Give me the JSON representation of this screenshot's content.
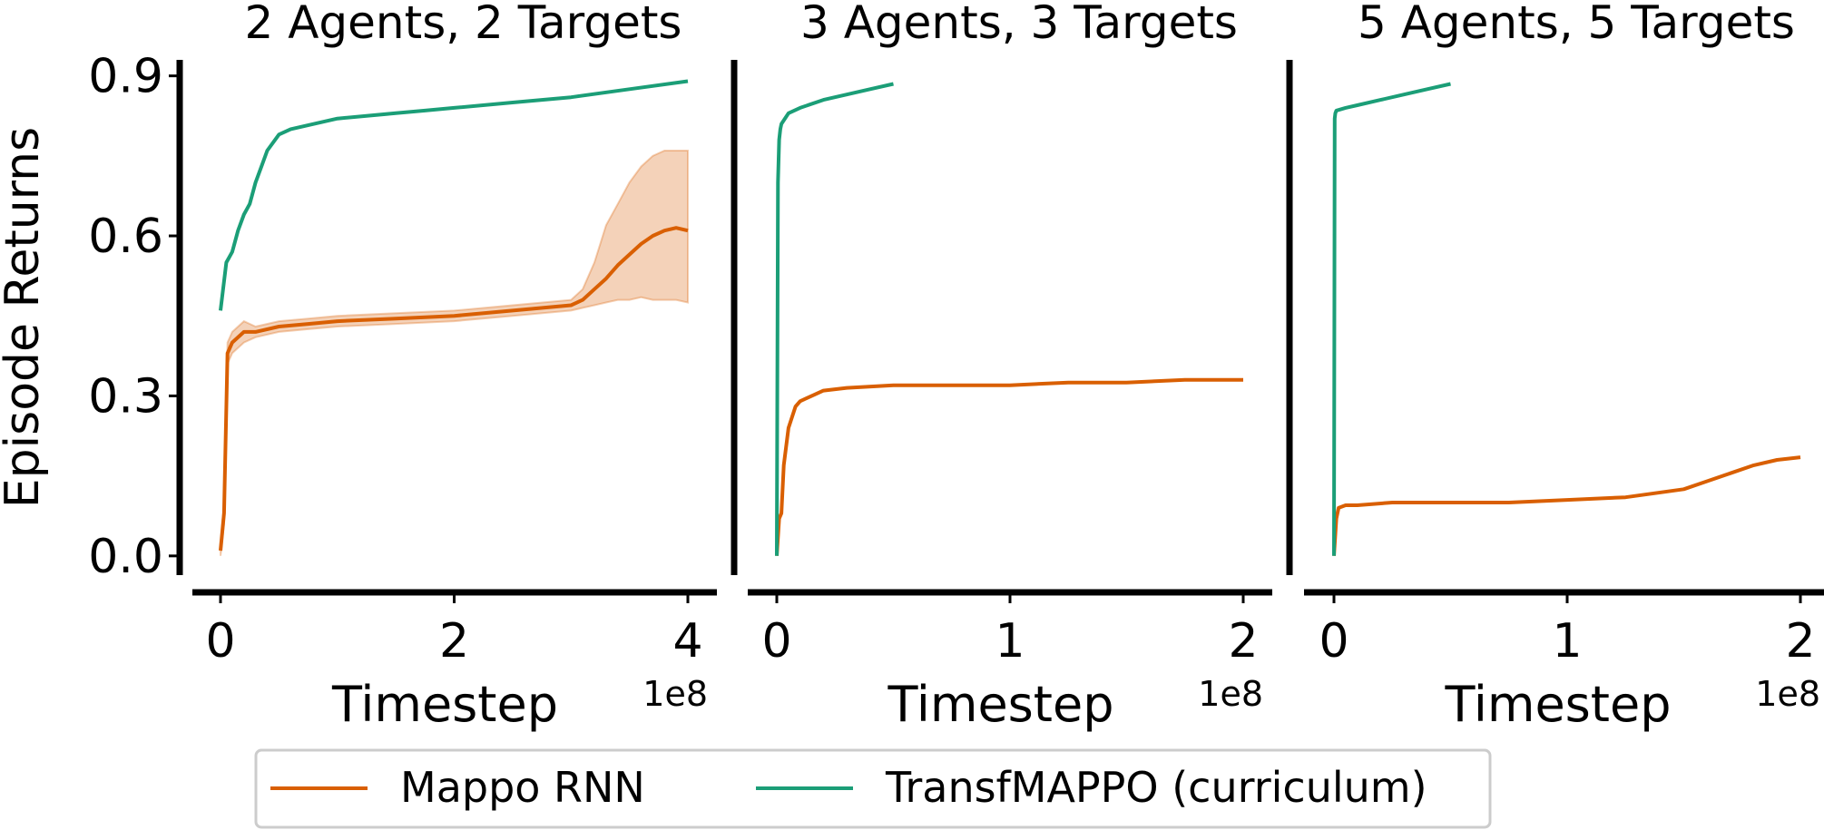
{
  "figure": {
    "ylabel": "Episode Returns",
    "legend": {
      "placement": "bottom-center",
      "entries": [
        {
          "label": "Mappo RNN",
          "color": "#d95f02"
        },
        {
          "label": "TransfMAPPO (curriculum)",
          "color": "#1b9e77"
        }
      ]
    }
  },
  "chart_data": [
    {
      "type": "line",
      "title": "2 Agents, 2 Targets",
      "xlabel": "Timestep",
      "x_offset_label": "1e8",
      "ylabel": "Episode Returns",
      "xlim": [
        0,
        4
      ],
      "ylim": [
        -0.07,
        0.93
      ],
      "xticks": [
        0,
        2,
        4
      ],
      "xtick_labels": [
        "0",
        "2",
        "4"
      ],
      "yticks": [
        0.0,
        0.3,
        0.6,
        0.9
      ],
      "ytick_labels": [
        "0.0",
        "0.3",
        "0.6",
        "0.9"
      ],
      "grid": false,
      "series": [
        {
          "name": "Mappo RNN",
          "color": "#d95f02",
          "x": [
            0,
            0.03,
            0.06,
            0.1,
            0.2,
            0.3,
            0.5,
            0.75,
            1.0,
            1.5,
            2.0,
            2.5,
            3.0,
            3.1,
            3.2,
            3.3,
            3.4,
            3.5,
            3.6,
            3.7,
            3.8,
            3.9,
            4.0
          ],
          "y": [
            0.01,
            0.08,
            0.38,
            0.4,
            0.42,
            0.42,
            0.43,
            0.435,
            0.44,
            0.445,
            0.45,
            0.46,
            0.47,
            0.48,
            0.5,
            0.52,
            0.545,
            0.565,
            0.585,
            0.6,
            0.61,
            0.615,
            0.61
          ],
          "band_low": [
            0.0,
            0.06,
            0.36,
            0.38,
            0.4,
            0.41,
            0.42,
            0.425,
            0.43,
            0.435,
            0.44,
            0.45,
            0.46,
            0.465,
            0.47,
            0.475,
            0.48,
            0.48,
            0.485,
            0.48,
            0.48,
            0.48,
            0.475
          ],
          "band_high": [
            0.02,
            0.1,
            0.4,
            0.42,
            0.44,
            0.43,
            0.44,
            0.445,
            0.45,
            0.455,
            0.46,
            0.47,
            0.48,
            0.5,
            0.55,
            0.62,
            0.66,
            0.7,
            0.73,
            0.75,
            0.76,
            0.76,
            0.76
          ]
        },
        {
          "name": "TransfMAPPO (curriculum)",
          "color": "#1b9e77",
          "x": [
            0,
            0.05,
            0.1,
            0.15,
            0.2,
            0.25,
            0.3,
            0.35,
            0.4,
            0.5,
            0.6,
            0.8,
            1.0,
            1.25,
            1.5,
            1.75,
            2.0,
            2.5,
            3.0,
            3.5,
            4.0
          ],
          "y": [
            0.46,
            0.55,
            0.57,
            0.61,
            0.64,
            0.66,
            0.7,
            0.73,
            0.76,
            0.79,
            0.8,
            0.81,
            0.82,
            0.825,
            0.83,
            0.835,
            0.84,
            0.85,
            0.86,
            0.875,
            0.89
          ]
        }
      ]
    },
    {
      "type": "line",
      "title": "3 Agents, 3 Targets",
      "xlabel": "Timestep",
      "x_offset_label": "1e8",
      "xlim": [
        0,
        2
      ],
      "ylim": [
        -0.07,
        0.93
      ],
      "xticks": [
        0,
        1,
        2
      ],
      "xtick_labels": [
        "0",
        "1",
        "2"
      ],
      "grid": false,
      "series": [
        {
          "name": "Mappo RNN",
          "color": "#d95f02",
          "x": [
            0,
            0.01,
            0.02,
            0.03,
            0.05,
            0.08,
            0.1,
            0.15,
            0.2,
            0.3,
            0.5,
            0.75,
            1.0,
            1.25,
            1.5,
            1.75,
            2.0
          ],
          "y": [
            0.0,
            0.07,
            0.08,
            0.17,
            0.24,
            0.28,
            0.29,
            0.3,
            0.31,
            0.315,
            0.32,
            0.32,
            0.32,
            0.325,
            0.325,
            0.33,
            0.33
          ]
        },
        {
          "name": "TransfMAPPO (curriculum)",
          "color": "#1b9e77",
          "x": [
            0,
            0.005,
            0.01,
            0.015,
            0.02,
            0.05,
            0.1,
            0.2,
            0.3,
            0.4,
            0.5
          ],
          "y": [
            0.0,
            0.7,
            0.78,
            0.8,
            0.81,
            0.83,
            0.84,
            0.855,
            0.865,
            0.875,
            0.885
          ]
        }
      ]
    },
    {
      "type": "line",
      "title": "5 Agents, 5 Targets",
      "xlabel": "Timestep",
      "x_offset_label": "1e8",
      "xlim": [
        0,
        2
      ],
      "ylim": [
        -0.07,
        0.93
      ],
      "xticks": [
        0,
        1,
        2
      ],
      "xtick_labels": [
        "0",
        "1",
        "2"
      ],
      "grid": false,
      "series": [
        {
          "name": "Mappo RNN",
          "color": "#d95f02",
          "x": [
            0,
            0.01,
            0.02,
            0.05,
            0.1,
            0.25,
            0.5,
            0.75,
            1.0,
            1.25,
            1.5,
            1.6,
            1.7,
            1.8,
            1.9,
            2.0
          ],
          "y": [
            0.0,
            0.07,
            0.09,
            0.095,
            0.095,
            0.1,
            0.1,
            0.1,
            0.105,
            0.11,
            0.125,
            0.14,
            0.155,
            0.17,
            0.18,
            0.185
          ]
        },
        {
          "name": "TransfMAPPO (curriculum)",
          "color": "#1b9e77",
          "x": [
            0,
            0.003,
            0.006,
            0.01,
            0.05,
            0.1,
            0.2,
            0.3,
            0.4,
            0.5
          ],
          "y": [
            0.0,
            0.82,
            0.83,
            0.835,
            0.84,
            0.845,
            0.855,
            0.865,
            0.875,
            0.885
          ]
        }
      ]
    }
  ]
}
